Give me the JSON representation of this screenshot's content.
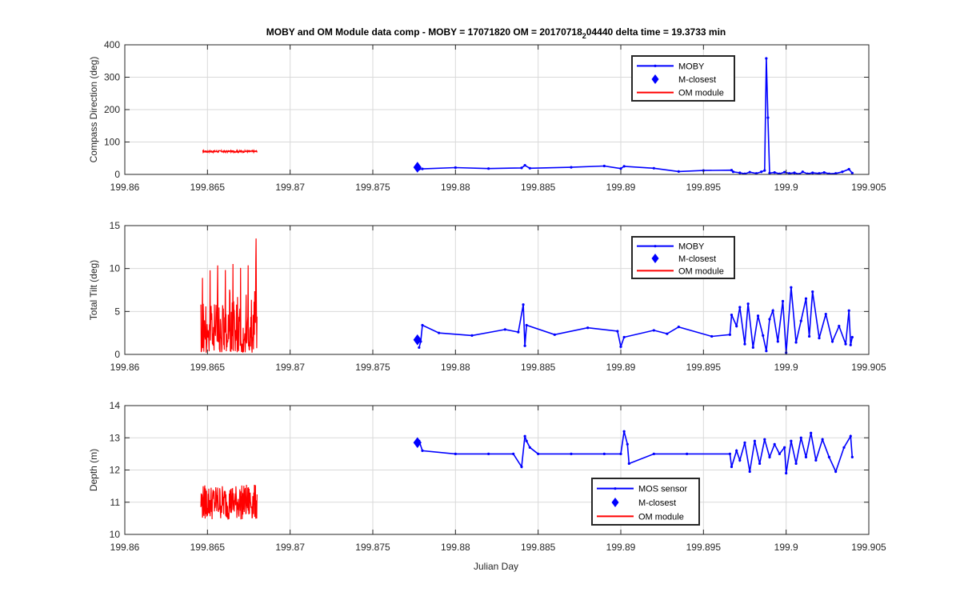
{
  "figure": {
    "title_main": "MOBY and OM Module data comp - MOBY = 17071820 OM = 20170718",
    "title_sub": "2",
    "title_tail": "04440 delta time = 19.3733 min",
    "xlabel": "Julian Day"
  },
  "colors": {
    "moby": "#0000ff",
    "om": "#ff0000",
    "grid": "#d9d9d9",
    "axis": "#262626"
  },
  "chart_data": [
    {
      "type": "line",
      "ylabel": "Compass Direction (deg)",
      "xlim": [
        199.86,
        199.905
      ],
      "ylim": [
        0,
        400
      ],
      "xticks": [
        199.86,
        199.865,
        199.87,
        199.875,
        199.88,
        199.885,
        199.89,
        199.895,
        199.9,
        199.905
      ],
      "xtick_labels": [
        "199.86",
        "199.865",
        "199.87",
        "199.875",
        "199.88",
        "199.885",
        "199.89",
        "199.895",
        "199.9",
        "199.905"
      ],
      "yticks": [
        0,
        100,
        200,
        300,
        400
      ],
      "ytick_labels": [
        "0",
        "100",
        "200",
        "300",
        "400"
      ],
      "grid": true,
      "legend": {
        "position": "top-right",
        "entries": [
          "MOBY",
          "M-closest",
          "OM module"
        ]
      },
      "series": [
        {
          "name": "MOBY",
          "kind": "line-dots",
          "x": [
            199.8778,
            199.878,
            199.88,
            199.882,
            199.884,
            199.8842,
            199.8845,
            199.887,
            199.889,
            199.89,
            199.8902,
            199.892,
            199.8935,
            199.895,
            199.8967,
            199.8968,
            199.8972,
            199.8975,
            199.8978,
            199.8982,
            199.8985,
            199.8987,
            199.8988,
            199.8989,
            199.899,
            199.8993,
            199.8996,
            199.8999,
            199.9002,
            199.9005,
            199.9008,
            199.901,
            199.9013,
            199.9016,
            199.902,
            199.9023,
            199.9026,
            199.903,
            199.9034,
            199.9038,
            199.904
          ],
          "y": [
            16,
            17,
            21,
            18,
            20,
            28,
            19,
            22,
            26,
            18,
            25,
            19,
            9,
            12,
            13,
            8,
            5,
            2,
            7,
            3,
            8,
            12,
            358,
            175,
            4,
            6,
            2,
            7,
            3,
            5,
            1,
            8,
            2,
            5,
            3,
            6,
            2,
            3,
            8,
            16,
            4
          ]
        },
        {
          "name": "M-closest",
          "kind": "marker",
          "x": [
            199.8777
          ],
          "y": [
            22
          ]
        },
        {
          "name": "OM module",
          "kind": "band",
          "x_start": 199.8647,
          "x_end": 199.868,
          "y_center": 71,
          "amplitude": 3
        }
      ]
    },
    {
      "type": "line",
      "ylabel": "Total Tilt (deg)",
      "xlim": [
        199.86,
        199.905
      ],
      "ylim": [
        0,
        15
      ],
      "xticks": [
        199.86,
        199.865,
        199.87,
        199.875,
        199.88,
        199.885,
        199.89,
        199.895,
        199.9,
        199.905
      ],
      "xtick_labels": [
        "199.86",
        "199.865",
        "199.87",
        "199.875",
        "199.88",
        "199.885",
        "199.89",
        "199.895",
        "199.9",
        "199.905"
      ],
      "yticks": [
        0,
        5,
        10,
        15
      ],
      "ytick_labels": [
        "0",
        "5",
        "10",
        "15"
      ],
      "grid": true,
      "legend": {
        "position": "top-right",
        "entries": [
          "MOBY",
          "M-closest",
          "OM module"
        ]
      },
      "series": [
        {
          "name": "MOBY",
          "kind": "line-dots",
          "x": [
            199.8778,
            199.8779,
            199.878,
            199.879,
            199.881,
            199.883,
            199.8838,
            199.8841,
            199.8842,
            199.8843,
            199.886,
            199.888,
            199.8898,
            199.89,
            199.8902,
            199.892,
            199.8928,
            199.8935,
            199.8955,
            199.8966,
            199.8967,
            199.897,
            199.8972,
            199.8975,
            199.8977,
            199.898,
            199.8983,
            199.8986,
            199.8988,
            199.899,
            199.8992,
            199.8995,
            199.8998,
            199.9,
            199.9003,
            199.9006,
            199.9009,
            199.9012,
            199.9014,
            199.9016,
            199.902,
            199.9024,
            199.9028,
            199.9032,
            199.9036,
            199.9038,
            199.9039,
            199.904
          ],
          "y": [
            0.8,
            1.5,
            3.4,
            2.5,
            2.2,
            2.9,
            2.6,
            5.8,
            1.0,
            3.4,
            2.3,
            3.1,
            2.7,
            0.9,
            2.0,
            2.8,
            2.4,
            3.2,
            2.1,
            2.3,
            4.6,
            3.3,
            5.5,
            1.2,
            5.9,
            0.8,
            4.5,
            2.2,
            0.4,
            4.1,
            5.1,
            1.5,
            6.2,
            0.2,
            7.8,
            1.4,
            3.9,
            6.5,
            2.1,
            7.3,
            1.9,
            4.7,
            1.5,
            3.3,
            1.2,
            5.1,
            1.1,
            2.0
          ]
        },
        {
          "name": "M-closest",
          "kind": "marker",
          "x": [
            199.8777
          ],
          "y": [
            1.7
          ]
        },
        {
          "name": "OM module",
          "kind": "band",
          "x_start": 199.8646,
          "x_end": 199.868,
          "y_center": 3.0,
          "amplitude": 2.5,
          "y_max": 13.5
        }
      ]
    },
    {
      "type": "line",
      "ylabel": "Depth (m)",
      "xlim": [
        199.86,
        199.905
      ],
      "ylim": [
        10,
        14
      ],
      "xticks": [
        199.86,
        199.865,
        199.87,
        199.875,
        199.88,
        199.885,
        199.89,
        199.895,
        199.9,
        199.905
      ],
      "xtick_labels": [
        "199.86",
        "199.865",
        "199.87",
        "199.875",
        "199.88",
        "199.885",
        "199.89",
        "199.895",
        "199.9",
        "199.905"
      ],
      "yticks": [
        10,
        11,
        12,
        13,
        14
      ],
      "ytick_labels": [
        "10",
        "11",
        "12",
        "13",
        "14"
      ],
      "grid": true,
      "legend": {
        "position": "bottom-right",
        "entries": [
          "MOS sensor",
          "M-closest",
          "OM module"
        ]
      },
      "series": [
        {
          "name": "MOS sensor",
          "kind": "line-dots",
          "x": [
            199.8778,
            199.878,
            199.88,
            199.882,
            199.8835,
            199.884,
            199.8842,
            199.8843,
            199.8845,
            199.885,
            199.887,
            199.889,
            199.89,
            199.8902,
            199.8904,
            199.8905,
            199.892,
            199.894,
            199.8966,
            199.8967,
            199.897,
            199.8972,
            199.8975,
            199.8978,
            199.8981,
            199.8984,
            199.8987,
            199.899,
            199.8993,
            199.8996,
            199.8999,
            199.9,
            199.9003,
            199.9006,
            199.9009,
            199.9012,
            199.9015,
            199.9018,
            199.9022,
            199.9026,
            199.903,
            199.9035,
            199.9039,
            199.904
          ],
          "y": [
            12.9,
            12.6,
            12.5,
            12.5,
            12.5,
            12.1,
            13.05,
            12.9,
            12.7,
            12.5,
            12.5,
            12.5,
            12.5,
            13.2,
            12.8,
            12.2,
            12.5,
            12.5,
            12.5,
            12.1,
            12.6,
            12.3,
            12.85,
            11.95,
            12.9,
            12.2,
            12.95,
            12.4,
            12.8,
            12.5,
            12.7,
            11.9,
            12.9,
            12.2,
            13.0,
            12.4,
            13.15,
            12.3,
            12.95,
            12.4,
            11.95,
            12.7,
            13.05,
            12.4
          ]
        },
        {
          "name": "M-closest",
          "kind": "marker",
          "x": [
            199.8777
          ],
          "y": [
            12.85
          ]
        },
        {
          "name": "OM module",
          "kind": "band",
          "x_start": 199.8646,
          "x_end": 199.868,
          "y_center": 11.0,
          "amplitude": 0.55
        }
      ]
    }
  ]
}
